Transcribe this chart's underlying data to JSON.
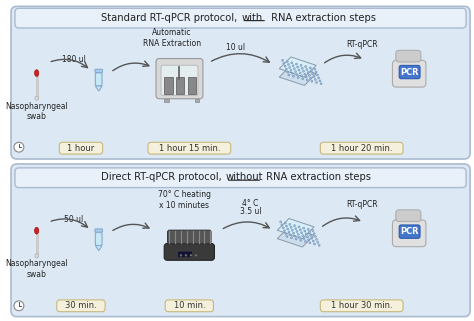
{
  "bg_color": "#ffffff",
  "panel_bg": "#dce9f5",
  "panel_border": "#aabbd0",
  "title_box_bg": "#e8f0fa",
  "time_box_color": "#f5f0dc",
  "time_box_border": "#c8b87a",
  "panel1_times": [
    "1 hour",
    "1 hour 15 min.",
    "1 hour 20 min."
  ],
  "panel2_times": [
    "30 min.",
    "10 min.",
    "1 hour 30 min."
  ],
  "swab_label": "Nasopharyngeal\nswab",
  "p1_label1": "180 ul",
  "p1_label2": "Automatic\nRNA Extraction",
  "p1_label3": "10 ul",
  "p1_label4": "RT-qPCR",
  "p2_label1": "50 ul",
  "p2_label2": "70° C heating\nx 10 minutes",
  "p2_label3": "4° C",
  "p2_label3b": "3.5 ul",
  "p2_label4": "RT-qPCR",
  "pcr_label": "PCR",
  "arrow_color": "#555555",
  "swab_stick_color": "#cccccc",
  "swab_cap_color": "#cc2222",
  "tube_body_color": "#c8e8f8",
  "tube_border_color": "#88aacc",
  "tube_cap_color": "#aaccee",
  "machine1_body": "#d8d8d8",
  "machine1_glass": "#e8f4f8",
  "machine1_interior": "#888888",
  "machine2_base": "#3a3a3a",
  "machine2_ridge": "#555555",
  "machine2_display": "#111133",
  "plate_base": "#ccddee",
  "plate_top": "#d8eef8",
  "plate_well": "#99bbdd",
  "pcr_body": "#e0e0e0",
  "pcr_screen": "#4477cc",
  "pcr_lid": "#cccccc"
}
